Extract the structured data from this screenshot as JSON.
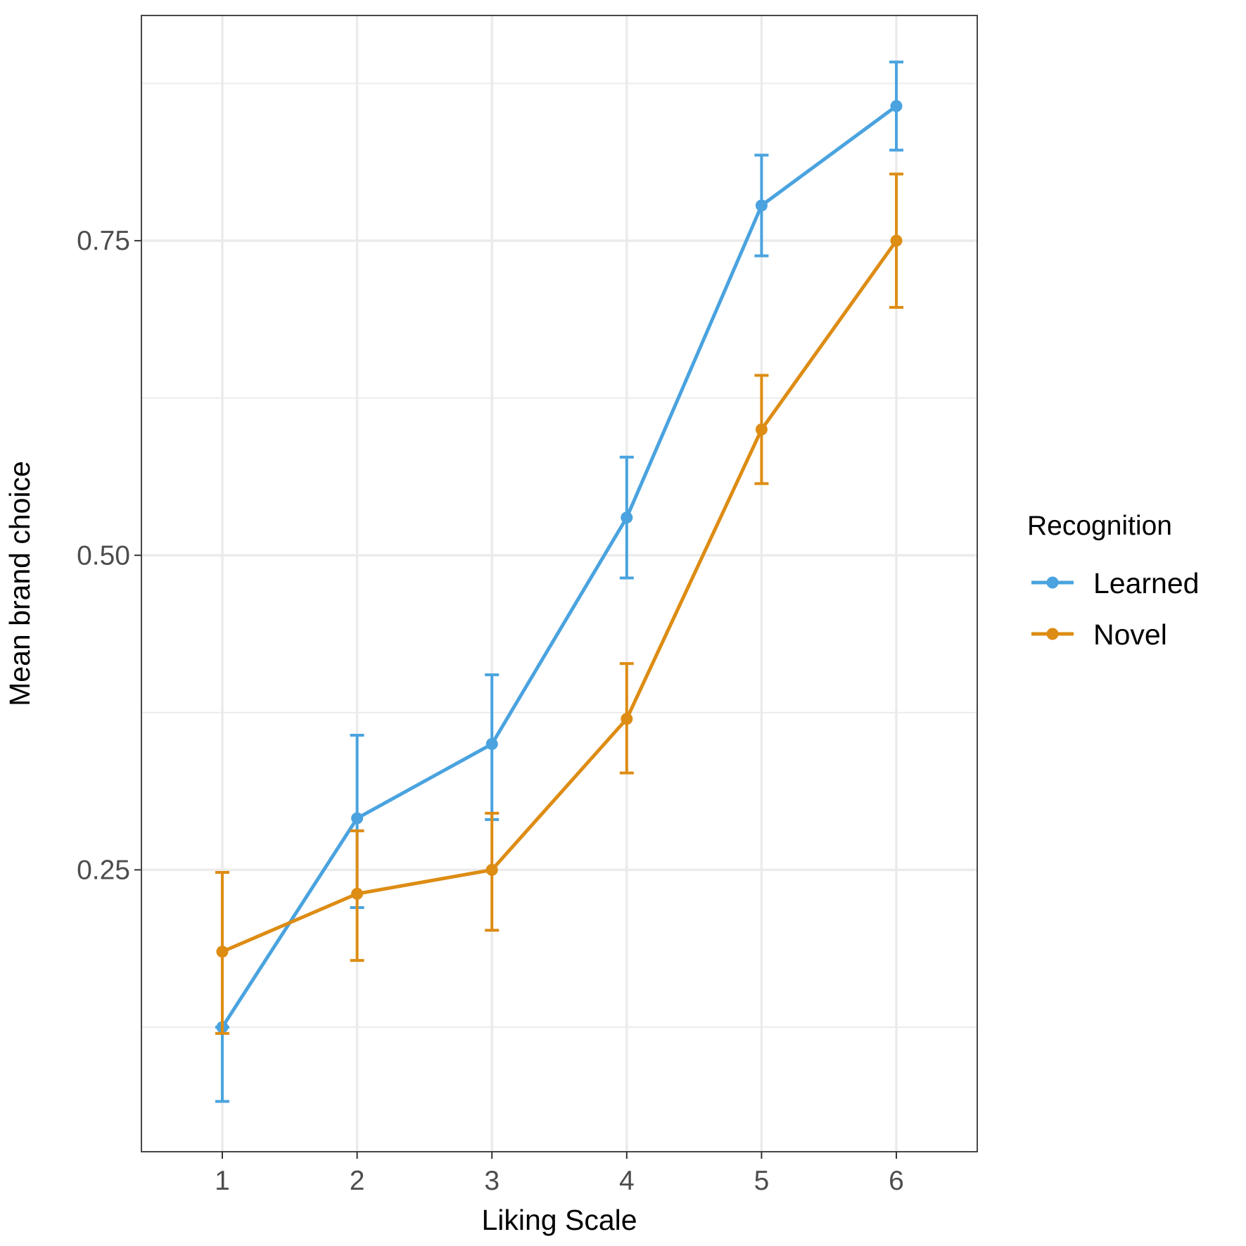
{
  "chart_data": {
    "type": "line",
    "xlabel": "Liking Scale",
    "ylabel": "Mean brand choice",
    "x": [
      1,
      2,
      3,
      4,
      5,
      6
    ],
    "xlim": [
      0.4,
      6.6
    ],
    "ylim": [
      0.026,
      0.929
    ],
    "x_ticks": [
      "1",
      "2",
      "3",
      "4",
      "5",
      "6"
    ],
    "y_ticks": [
      0.25,
      0.5,
      0.75
    ],
    "y_tick_labels": [
      "0.25",
      "0.50",
      "0.75"
    ],
    "y_minor_gridlines": [
      0.125,
      0.375,
      0.625,
      0.875
    ],
    "grid": true,
    "legend": {
      "title": "Recognition",
      "position": "right"
    },
    "series": [
      {
        "name": "Learned",
        "color": "#4aa3df",
        "y": [
          0.125,
          0.291,
          0.35,
          0.53,
          0.778,
          0.857
        ],
        "lower": [
          0.066,
          0.22,
          0.29,
          0.482,
          0.738,
          0.822
        ],
        "upper": [
          0.125,
          0.357,
          0.405,
          0.578,
          0.818,
          0.892
        ]
      },
      {
        "name": "Novel",
        "color": "#dd8c14",
        "y": [
          0.185,
          0.231,
          0.25,
          0.37,
          0.6,
          0.75
        ],
        "lower": [
          0.12,
          0.178,
          0.202,
          0.327,
          0.557,
          0.697
        ],
        "upper": [
          0.248,
          0.281,
          0.295,
          0.414,
          0.643,
          0.803
        ]
      }
    ]
  }
}
